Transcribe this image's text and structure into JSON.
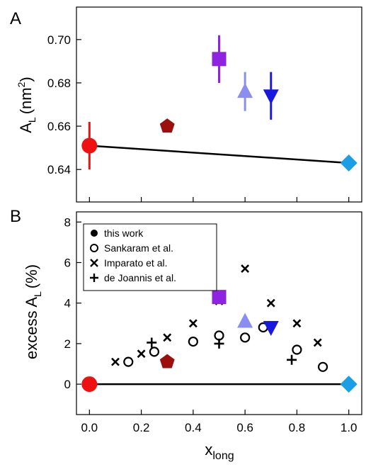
{
  "chart_data": [
    {
      "panel": "A",
      "type": "scatter",
      "xlabel": "",
      "ylabel": "A",
      "ylabel_sub": "L",
      "ylabel_unit": "(nm",
      "ylabel_sup": "2",
      "ylabel_close": ")",
      "xlim": [
        -0.05,
        1.05
      ],
      "ylim": [
        0.625,
        0.715
      ],
      "yticks": [
        0.64,
        0.66,
        0.68,
        0.7
      ],
      "ytick_labels": [
        "0.64",
        "0.66",
        "0.68",
        "0.70"
      ],
      "xticks": [
        0.0,
        0.2,
        0.4,
        0.6,
        0.8,
        1.0
      ],
      "fit_line": {
        "x": [
          0.0,
          1.0
        ],
        "y": [
          0.651,
          0.643
        ]
      },
      "points": [
        {
          "x": 0.0,
          "y": 0.651,
          "err": 0.011,
          "marker": "circle",
          "color": "#ee1111"
        },
        {
          "x": 0.3,
          "y": 0.66,
          "err": 0,
          "marker": "pentagon",
          "color": "#9b0f0f"
        },
        {
          "x": 0.5,
          "y": 0.691,
          "err": 0.011,
          "marker": "square",
          "color": "#8e24e0"
        },
        {
          "x": 0.6,
          "y": 0.676,
          "err": 0.009,
          "marker": "triangle-up",
          "color": "#8a8ef0"
        },
        {
          "x": 0.7,
          "y": 0.674,
          "err": 0.011,
          "marker": "triangle-down",
          "color": "#1818e0"
        },
        {
          "x": 1.0,
          "y": 0.643,
          "err": 0,
          "marker": "diamond",
          "color": "#1a9ee6"
        }
      ]
    },
    {
      "panel": "B",
      "type": "scatter",
      "xlabel": "x",
      "xlabel_sub": "long",
      "ylabel": "excess A",
      "ylabel_sub": "L",
      "ylabel_unit": "(%)",
      "xlim": [
        -0.05,
        1.05
      ],
      "ylim": [
        -1.5,
        8.5
      ],
      "yticks": [
        0,
        2,
        4,
        6,
        8
      ],
      "ytick_labels": [
        "0",
        "2",
        "4",
        "6",
        "8"
      ],
      "xticks": [
        0.0,
        0.2,
        0.4,
        0.6,
        0.8,
        1.0
      ],
      "xtick_labels": [
        "0.0",
        "0.2",
        "0.4",
        "0.6",
        "0.8",
        "1.0"
      ],
      "zero_line": {
        "x": [
          0.0,
          1.0
        ],
        "y": [
          0.0,
          0.0
        ]
      },
      "legend": {
        "position": "top-left",
        "entries": [
          {
            "marker": "filled-circle",
            "label": "this work"
          },
          {
            "marker": "open-circle",
            "label": "Sankaram et al."
          },
          {
            "marker": "x",
            "label": "Imparato et al."
          },
          {
            "marker": "plus",
            "label": "de Joannis et al."
          }
        ]
      },
      "this_work": [
        {
          "x": 0.0,
          "y": 0.0,
          "marker": "circle",
          "color": "#ee1111"
        },
        {
          "x": 0.3,
          "y": 1.1,
          "marker": "pentagon",
          "color": "#9b0f0f"
        },
        {
          "x": 0.5,
          "y": 4.3,
          "marker": "square",
          "color": "#8e24e0"
        },
        {
          "x": 0.6,
          "y": 3.1,
          "marker": "triangle-up",
          "color": "#8a8ef0"
        },
        {
          "x": 0.7,
          "y": 2.8,
          "marker": "triangle-down",
          "color": "#1818e0"
        },
        {
          "x": 1.0,
          "y": 0.0,
          "marker": "diamond",
          "color": "#1a9ee6"
        }
      ],
      "sankaram": {
        "x": [
          0.0,
          0.15,
          0.25,
          0.4,
          0.5,
          0.6,
          0.67,
          0.8,
          0.9
        ],
        "y": [
          0.1,
          1.1,
          1.6,
          2.1,
          2.4,
          2.3,
          2.8,
          1.7,
          0.85
        ]
      },
      "imparato": {
        "x": [
          0.1,
          0.2,
          0.3,
          0.4,
          0.5,
          0.6,
          0.7,
          0.8,
          0.88
        ],
        "y": [
          1.1,
          1.5,
          2.3,
          3.0,
          4.1,
          5.7,
          4.0,
          3.0,
          2.05
        ]
      },
      "dejoannis": {
        "x": [
          0.24,
          0.5,
          0.78
        ],
        "y": [
          2.05,
          2.0,
          1.2
        ]
      }
    }
  ]
}
